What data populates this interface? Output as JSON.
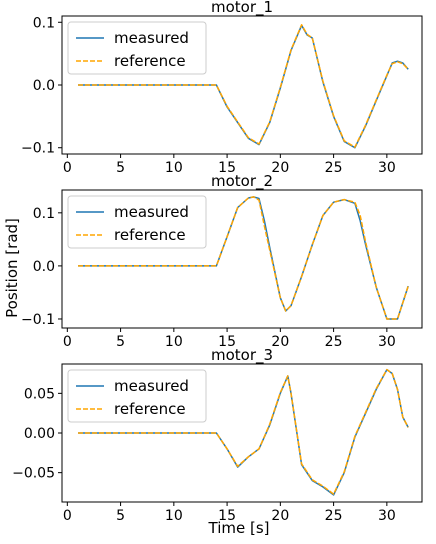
{
  "figure": {
    "ylabel": "Position [rad]",
    "xlabel": "Time [s]"
  },
  "chart_data": [
    {
      "type": "line",
      "title": "motor_1",
      "xlim": [
        -0.5,
        33.3
      ],
      "ylim": [
        -0.11,
        0.11
      ],
      "xticks": [
        0,
        5,
        10,
        15,
        20,
        25,
        30
      ],
      "yticks": [
        -0.1,
        0.0,
        0.1
      ],
      "ytick_labels": [
        "−0.1",
        "0.0",
        "0.1"
      ],
      "legend": {
        "position": "top-left"
      },
      "series": [
        {
          "name": "measured",
          "color": "#1f77b4",
          "style": "solid",
          "x": [
            1,
            14,
            15,
            16,
            17,
            18,
            19,
            20,
            21,
            22,
            22.5,
            23,
            24,
            25,
            26,
            27,
            28,
            29,
            30,
            30.5,
            31,
            31.5,
            32
          ],
          "y": [
            0,
            0,
            -0.035,
            -0.06,
            -0.085,
            -0.095,
            -0.06,
            -0.005,
            0.055,
            0.095,
            0.08,
            0.075,
            0.005,
            -0.05,
            -0.09,
            -0.1,
            -0.065,
            -0.025,
            0.015,
            0.035,
            0.038,
            0.035,
            0.025
          ]
        },
        {
          "name": "reference",
          "color": "#ffa500",
          "style": "dashed",
          "x": [
            1,
            14,
            15,
            16,
            17,
            18,
            19,
            20,
            21,
            22,
            22.5,
            23,
            24,
            25,
            26,
            27,
            28,
            29,
            30,
            30.5,
            31,
            31.5,
            32
          ],
          "y": [
            0,
            0,
            -0.034,
            -0.059,
            -0.084,
            -0.094,
            -0.059,
            -0.004,
            0.056,
            0.096,
            0.081,
            0.075,
            0.006,
            -0.049,
            -0.089,
            -0.099,
            -0.064,
            -0.024,
            0.016,
            0.034,
            0.037,
            0.034,
            0.025
          ]
        }
      ]
    },
    {
      "type": "line",
      "title": "motor_2",
      "xlim": [
        -0.5,
        33.3
      ],
      "ylim": [
        -0.117,
        0.143
      ],
      "xticks": [
        0,
        5,
        10,
        15,
        20,
        25,
        30
      ],
      "yticks": [
        -0.1,
        0.0,
        0.1
      ],
      "ytick_labels": [
        "−0.1",
        "0.0",
        "0.1"
      ],
      "legend": {
        "position": "top-left"
      },
      "series": [
        {
          "name": "measured",
          "color": "#1f77b4",
          "style": "solid",
          "x": [
            1,
            14,
            15,
            16,
            17,
            17.5,
            18,
            18.5,
            19,
            20,
            20.5,
            21,
            22,
            23,
            24,
            25,
            26,
            27,
            27.5,
            28,
            29,
            30,
            31,
            32
          ],
          "y": [
            0,
            0,
            0.055,
            0.11,
            0.128,
            0.13,
            0.127,
            0.085,
            0.035,
            -0.06,
            -0.085,
            -0.075,
            -0.02,
            0.04,
            0.095,
            0.12,
            0.125,
            0.118,
            0.085,
            0.04,
            -0.04,
            -0.1,
            -0.1,
            -0.038
          ]
        },
        {
          "name": "reference",
          "color": "#ffa500",
          "style": "dashed",
          "x": [
            1,
            14,
            15,
            16,
            17,
            17.5,
            18,
            18.5,
            19,
            20,
            20.5,
            21,
            22,
            23,
            24,
            25,
            26,
            27,
            27.5,
            28,
            29,
            30,
            31,
            32
          ],
          "y": [
            0,
            0,
            0.055,
            0.11,
            0.128,
            0.13,
            0.124,
            0.075,
            0.03,
            -0.06,
            -0.085,
            -0.075,
            -0.02,
            0.04,
            0.095,
            0.12,
            0.125,
            0.12,
            0.095,
            0.045,
            -0.04,
            -0.1,
            -0.1,
            -0.038
          ]
        }
      ]
    },
    {
      "type": "line",
      "title": "motor_3",
      "xlim": [
        -0.5,
        33.3
      ],
      "ylim": [
        -0.087,
        0.087
      ],
      "xticks": [
        0,
        5,
        10,
        15,
        20,
        25,
        30
      ],
      "yticks": [
        -0.05,
        0.0,
        0.05
      ],
      "ytick_labels": [
        "−0.05",
        "0.00",
        "0.05"
      ],
      "legend": {
        "position": "top-left"
      },
      "series": [
        {
          "name": "measured",
          "color": "#1f77b4",
          "style": "solid",
          "x": [
            1,
            14,
            15,
            16,
            17,
            18,
            19,
            20,
            20.7,
            21,
            22,
            23,
            24,
            25,
            26,
            27,
            28,
            29,
            30,
            30.5,
            31,
            31.5,
            32
          ],
          "y": [
            0,
            0,
            -0.02,
            -0.043,
            -0.03,
            -0.02,
            0.01,
            0.05,
            0.072,
            0.05,
            -0.04,
            -0.06,
            -0.068,
            -0.078,
            -0.05,
            -0.005,
            0.025,
            0.055,
            0.08,
            0.075,
            0.055,
            0.02,
            0.007
          ]
        },
        {
          "name": "reference",
          "color": "#ffa500",
          "style": "dashed",
          "x": [
            1,
            14,
            15,
            16,
            17,
            18,
            19,
            20,
            20.7,
            21,
            22,
            23,
            24,
            25,
            26,
            27,
            28,
            29,
            30,
            30.5,
            31,
            31.5,
            32
          ],
          "y": [
            0,
            0,
            -0.02,
            -0.042,
            -0.03,
            -0.02,
            0.011,
            0.051,
            0.072,
            0.05,
            -0.039,
            -0.059,
            -0.067,
            -0.077,
            -0.049,
            -0.004,
            0.026,
            0.056,
            0.08,
            0.075,
            0.055,
            0.02,
            0.007
          ]
        }
      ]
    }
  ]
}
